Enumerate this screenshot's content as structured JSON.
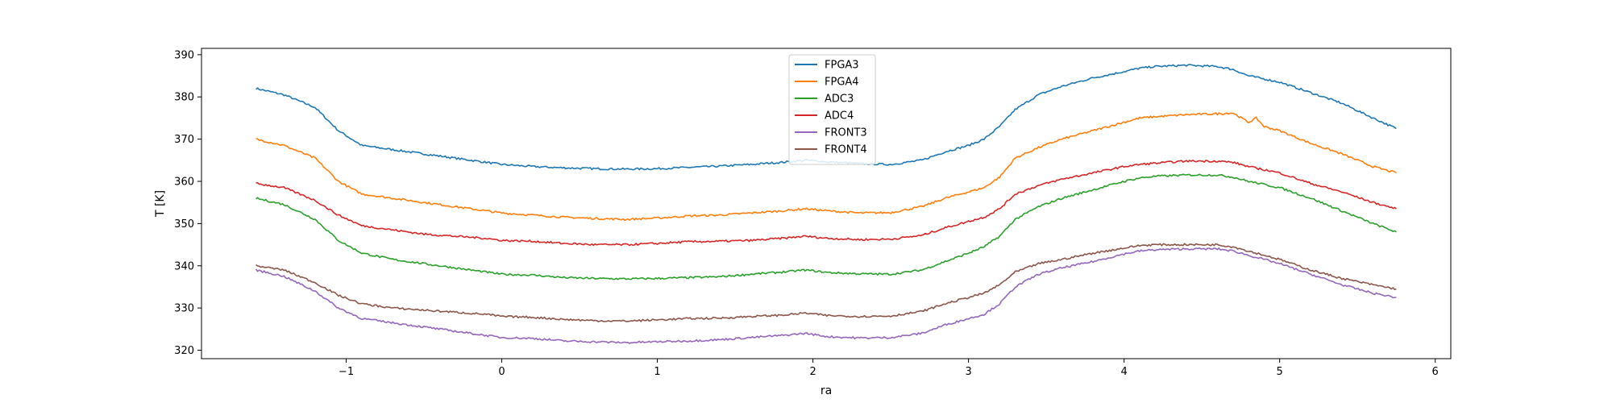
{
  "chart_data": {
    "type": "line",
    "title": "",
    "xlabel": "ra",
    "ylabel": "T [K]",
    "xlim": [
      -1.93,
      6.1
    ],
    "ylim": [
      318,
      391.5
    ],
    "xticks": [
      -1,
      0,
      1,
      2,
      3,
      4,
      5,
      6
    ],
    "xtick_labels": [
      "−1",
      "0",
      "1",
      "2",
      "3",
      "4",
      "5",
      "6"
    ],
    "yticks": [
      320,
      330,
      340,
      350,
      360,
      370,
      380,
      390
    ],
    "ytick_labels": [
      "320",
      "330",
      "340",
      "350",
      "360",
      "370",
      "380",
      "390"
    ],
    "grid": false,
    "legend_position": "upper center",
    "series": [
      {
        "name": "FPGA3",
        "color": "#1f77b4",
        "x": [
          -1.58,
          -1.4,
          -1.2,
          -1.05,
          -0.9,
          -0.7,
          -0.5,
          -0.3,
          -0.1,
          0.0,
          0.2,
          0.4,
          0.6,
          0.8,
          1.0,
          1.2,
          1.4,
          1.6,
          1.8,
          1.95,
          2.1,
          2.3,
          2.5,
          2.7,
          2.85,
          3.0,
          3.1,
          3.2,
          3.3,
          3.45,
          3.6,
          3.8,
          4.0,
          4.1,
          4.2,
          4.4,
          4.6,
          4.7,
          4.8,
          5.0,
          5.2,
          5.4,
          5.6,
          5.75
        ],
        "y": [
          382,
          380.5,
          377.5,
          372,
          368.5,
          367.5,
          366.5,
          365.5,
          364.5,
          364,
          363.5,
          363.2,
          363,
          362.9,
          363,
          363.3,
          363.6,
          364,
          364.5,
          365,
          364.6,
          364.2,
          364,
          365,
          367,
          368.5,
          370,
          373,
          377,
          380.5,
          382.5,
          384.5,
          386,
          386.8,
          387.2,
          387.5,
          387.2,
          386.5,
          385,
          383.5,
          381,
          378.5,
          375,
          372.5
        ]
      },
      {
        "name": "FPGA4",
        "color": "#ff7f0e",
        "x": [
          -1.58,
          -1.4,
          -1.2,
          -1.05,
          -0.9,
          -0.7,
          -0.5,
          -0.3,
          -0.1,
          0.0,
          0.2,
          0.4,
          0.6,
          0.8,
          1.0,
          1.2,
          1.4,
          1.6,
          1.8,
          1.95,
          2.1,
          2.3,
          2.5,
          2.7,
          2.85,
          3.0,
          3.1,
          3.2,
          3.3,
          3.45,
          3.6,
          3.8,
          4.0,
          4.1,
          4.2,
          4.4,
          4.6,
          4.7,
          4.8,
          4.85,
          4.9,
          5.0,
          5.2,
          5.4,
          5.6,
          5.75
        ],
        "y": [
          370,
          368.5,
          365.5,
          360,
          357,
          356,
          355,
          354,
          353,
          352.5,
          352,
          351.5,
          351.2,
          351,
          351.3,
          351.8,
          352,
          352.5,
          353,
          353.5,
          353,
          352.5,
          352.6,
          354,
          356,
          357.5,
          358.5,
          361,
          365.5,
          368,
          370,
          372,
          374,
          375,
          375.3,
          375.8,
          376,
          376.2,
          374,
          375,
          373,
          372,
          369,
          366.5,
          363.5,
          362
        ]
      },
      {
        "name": "ADC3",
        "color": "#2ca02c",
        "x": [
          -1.58,
          -1.4,
          -1.2,
          -1.05,
          -0.9,
          -0.7,
          -0.5,
          -0.3,
          -0.1,
          0.0,
          0.2,
          0.4,
          0.6,
          0.8,
          1.0,
          1.2,
          1.4,
          1.6,
          1.8,
          1.95,
          2.1,
          2.3,
          2.5,
          2.7,
          2.85,
          3.0,
          3.1,
          3.2,
          3.3,
          3.45,
          3.6,
          3.8,
          4.0,
          4.1,
          4.2,
          4.4,
          4.6,
          4.7,
          4.8,
          5.0,
          5.2,
          5.4,
          5.6,
          5.75
        ],
        "y": [
          356,
          354.5,
          351,
          346,
          343,
          341.5,
          340.5,
          339.5,
          338.5,
          338,
          337.8,
          337.2,
          337,
          336.9,
          337,
          337.2,
          337.4,
          338,
          338.5,
          339,
          338.4,
          338.1,
          338,
          339,
          341,
          343,
          344.5,
          347,
          351,
          354,
          356,
          358,
          360,
          360.8,
          361.2,
          361.5,
          361.5,
          361,
          360,
          358.5,
          356,
          353,
          350,
          348
        ]
      },
      {
        "name": "ADC4",
        "color": "#d62728",
        "x": [
          -1.58,
          -1.4,
          -1.2,
          -1.05,
          -0.9,
          -0.7,
          -0.5,
          -0.3,
          -0.1,
          0.0,
          0.2,
          0.4,
          0.6,
          0.8,
          1.0,
          1.2,
          1.4,
          1.6,
          1.8,
          1.95,
          2.1,
          2.3,
          2.5,
          2.7,
          2.85,
          3.0,
          3.1,
          3.2,
          3.3,
          3.45,
          3.6,
          3.8,
          4.0,
          4.1,
          4.2,
          4.4,
          4.6,
          4.7,
          4.8,
          5.0,
          5.2,
          5.4,
          5.6,
          5.75
        ],
        "y": [
          359.5,
          358.5,
          355.5,
          352,
          349.5,
          348.5,
          347.5,
          347,
          346.5,
          346,
          345.8,
          345.3,
          345,
          345,
          345.3,
          345.7,
          345.8,
          346,
          346.5,
          347,
          346.5,
          346.2,
          346.3,
          347.2,
          349,
          350.5,
          351.5,
          353.5,
          357,
          359,
          360.5,
          362,
          363.5,
          364,
          364.3,
          364.8,
          364.8,
          364.5,
          363.5,
          362,
          359.5,
          357.5,
          355,
          353.5
        ]
      },
      {
        "name": "FRONT3",
        "color": "#9467bd",
        "x": [
          -1.58,
          -1.4,
          -1.2,
          -1.05,
          -0.9,
          -0.7,
          -0.5,
          -0.3,
          -0.1,
          0.0,
          0.2,
          0.4,
          0.6,
          0.8,
          1.0,
          1.2,
          1.4,
          1.6,
          1.8,
          1.95,
          2.1,
          2.3,
          2.5,
          2.7,
          2.85,
          3.0,
          3.1,
          3.2,
          3.3,
          3.45,
          3.6,
          3.8,
          4.0,
          4.1,
          4.2,
          4.4,
          4.6,
          4.7,
          4.8,
          5.0,
          5.2,
          5.4,
          5.6,
          5.75
        ],
        "y": [
          339,
          337.5,
          334,
          330,
          327.5,
          326.5,
          325.5,
          324.5,
          323.5,
          323,
          322.8,
          322.2,
          322,
          321.8,
          322,
          322.2,
          322.5,
          323,
          323.5,
          324,
          323.2,
          322.9,
          323,
          324,
          326,
          327.5,
          328.5,
          331,
          335,
          338,
          339.5,
          341,
          342.8,
          343.5,
          343.8,
          344,
          344,
          343.5,
          342.5,
          340.5,
          338,
          335.5,
          333.5,
          332.5
        ]
      },
      {
        "name": "FRONT4",
        "color": "#8c564b",
        "x": [
          -1.58,
          -1.4,
          -1.2,
          -1.05,
          -0.9,
          -0.7,
          -0.5,
          -0.3,
          -0.1,
          0.0,
          0.2,
          0.4,
          0.6,
          0.8,
          1.0,
          1.2,
          1.4,
          1.6,
          1.8,
          1.95,
          2.1,
          2.3,
          2.5,
          2.7,
          2.85,
          3.0,
          3.1,
          3.2,
          3.3,
          3.45,
          3.6,
          3.8,
          4.0,
          4.1,
          4.2,
          4.4,
          4.6,
          4.7,
          4.8,
          5.0,
          5.2,
          5.4,
          5.6,
          5.75
        ],
        "y": [
          340,
          339,
          336,
          333,
          331,
          330,
          329.5,
          329,
          328.5,
          328,
          327.8,
          327.3,
          327,
          326.9,
          327.2,
          327.5,
          327.6,
          328,
          328.3,
          328.8,
          328.2,
          328,
          328.1,
          329.2,
          331,
          332.5,
          333.5,
          335.5,
          338.5,
          340.5,
          341.5,
          343,
          344.2,
          344.8,
          345,
          345,
          345,
          344.5,
          343.5,
          341.5,
          339,
          337,
          335.5,
          334.5
        ]
      }
    ]
  }
}
